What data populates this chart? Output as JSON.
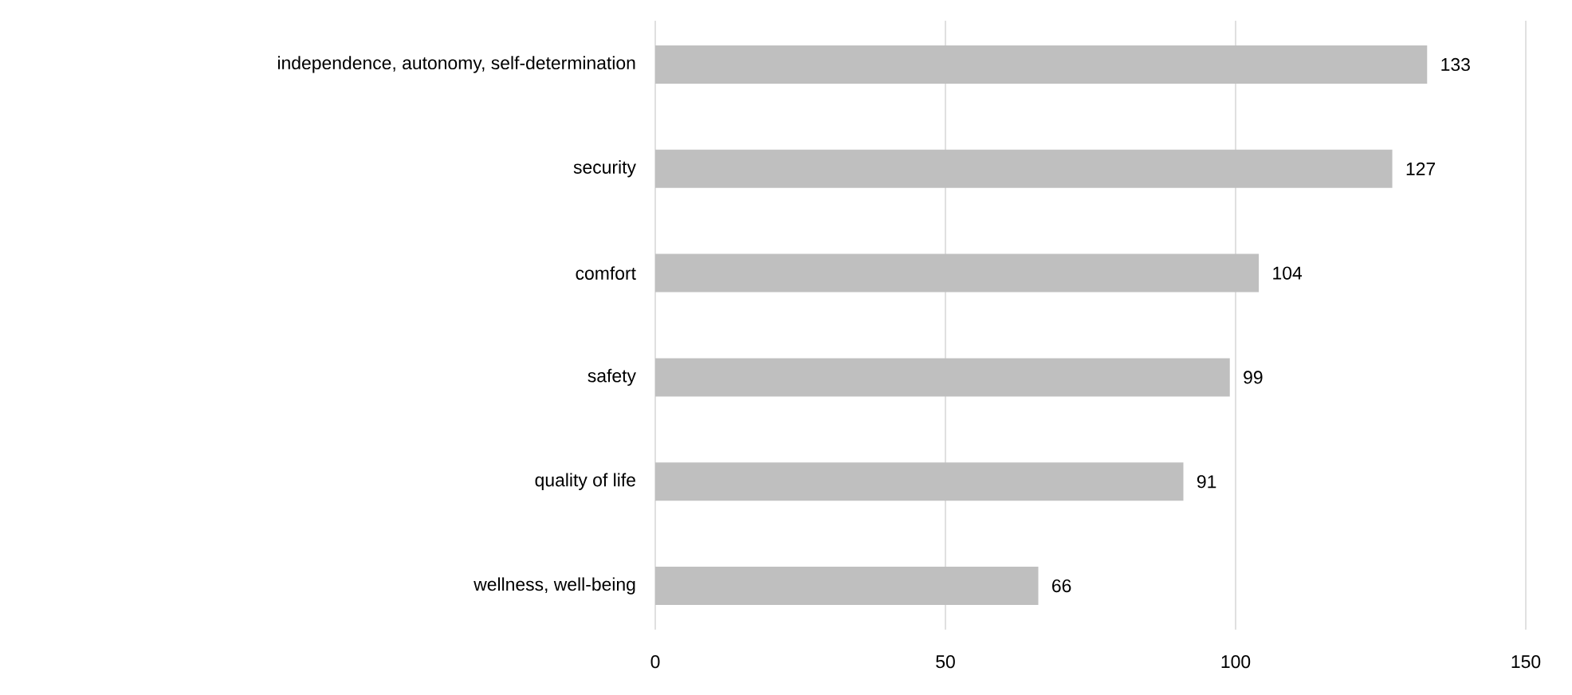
{
  "chart_data": {
    "type": "bar",
    "orientation": "horizontal",
    "categories": [
      "independence, autonomy, self-determination",
      "security",
      "comfort",
      "safety",
      "quality of life",
      "wellness, well-being"
    ],
    "values": [
      133,
      127,
      104,
      99,
      91,
      66
    ],
    "color": "#bfbfbf",
    "xlim": [
      0,
      150
    ],
    "xticks": [
      0,
      50,
      100,
      150
    ],
    "grid": "x",
    "data_labels": true
  }
}
